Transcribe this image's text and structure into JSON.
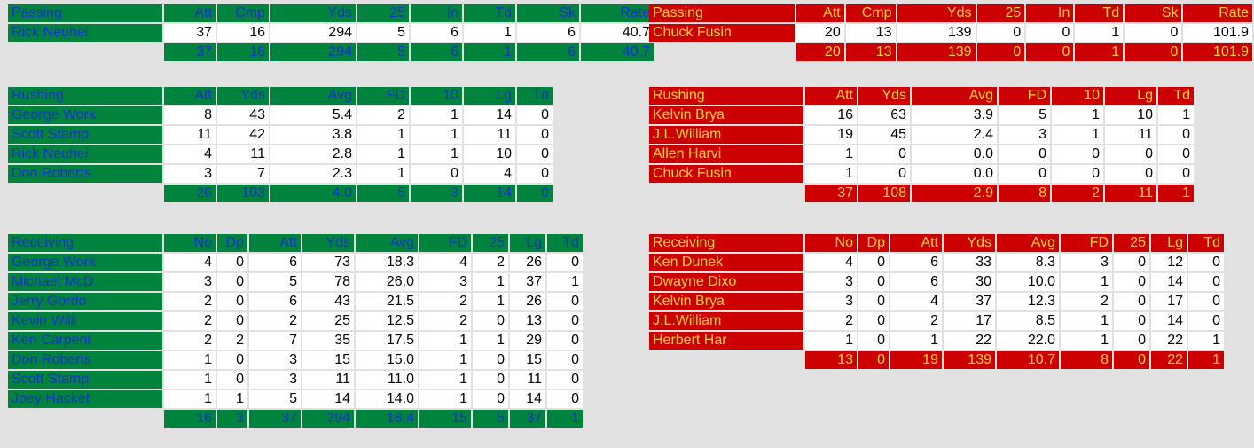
{
  "colors": {
    "home_bg": "#00843d",
    "home_text": "#1a2fd0",
    "away_bg": "#cc0000",
    "away_text": "#ffd23a",
    "cell_bg": "#ffffff",
    "page_bg": "#e1e1e1"
  },
  "home": {
    "passing": {
      "headers": [
        "Passing",
        "Att",
        "Cmp",
        "Yds",
        "25",
        "In",
        "Td",
        "Sk",
        "Rate"
      ],
      "rows": [
        [
          "Rick Neuhei",
          "37",
          "16",
          "294",
          "5",
          "6",
          "1",
          "6",
          "40.7"
        ]
      ],
      "totals": [
        "37",
        "16",
        "294",
        "5",
        "6",
        "1",
        "6",
        "40.7"
      ]
    },
    "rushing": {
      "headers": [
        "Rushing",
        "Att",
        "Yds",
        "Avg",
        "FD",
        "10",
        "Lg",
        "Td"
      ],
      "rows": [
        [
          "George Work",
          "8",
          "43",
          "5.4",
          "2",
          "1",
          "14",
          "0"
        ],
        [
          "Scott Stamp",
          "11",
          "42",
          "3.8",
          "1",
          "1",
          "11",
          "0"
        ],
        [
          "Rick Neuhei",
          "4",
          "11",
          "2.8",
          "1",
          "1",
          "10",
          "0"
        ],
        [
          "Don Roberts",
          "3",
          "7",
          "2.3",
          "1",
          "0",
          "4",
          "0"
        ]
      ],
      "totals": [
        "26",
        "103",
        "4.0",
        "5",
        "3",
        "14",
        "0"
      ]
    },
    "receiving": {
      "headers": [
        "Receiving",
        "No",
        "Dp",
        "Att",
        "Yds",
        "Avg",
        "FD",
        "25",
        "Lg",
        "Td"
      ],
      "rows": [
        [
          "George Work",
          "4",
          "0",
          "6",
          "73",
          "18.3",
          "4",
          "2",
          "26",
          "0"
        ],
        [
          "Michael McD",
          "3",
          "0",
          "5",
          "78",
          "26.0",
          "3",
          "1",
          "37",
          "1"
        ],
        [
          "Jerry Gordo",
          "2",
          "0",
          "6",
          "43",
          "21.5",
          "2",
          "1",
          "26",
          "0"
        ],
        [
          "Kevin Willi",
          "2",
          "0",
          "2",
          "25",
          "12.5",
          "2",
          "0",
          "13",
          "0"
        ],
        [
          "Ken Carpent",
          "2",
          "2",
          "7",
          "35",
          "17.5",
          "1",
          "1",
          "29",
          "0"
        ],
        [
          "Don Roberts",
          "1",
          "0",
          "3",
          "15",
          "15.0",
          "1",
          "0",
          "15",
          "0"
        ],
        [
          "Scott Stamp",
          "1",
          "0",
          "3",
          "11",
          "11.0",
          "1",
          "0",
          "11",
          "0"
        ],
        [
          "Joey Hacket",
          "1",
          "1",
          "5",
          "14",
          "14.0",
          "1",
          "0",
          "14",
          "0"
        ]
      ],
      "totals": [
        "16",
        "3",
        "37",
        "294",
        "18.4",
        "15",
        "5",
        "37",
        "1"
      ]
    }
  },
  "away": {
    "passing": {
      "headers": [
        "Passing",
        "Att",
        "Cmp",
        "Yds",
        "25",
        "In",
        "Td",
        "Sk",
        "Rate"
      ],
      "rows": [
        [
          "Chuck Fusin",
          "20",
          "13",
          "139",
          "0",
          "0",
          "1",
          "0",
          "101.9"
        ]
      ],
      "totals": [
        "20",
        "13",
        "139",
        "0",
        "0",
        "1",
        "0",
        "101.9"
      ]
    },
    "rushing": {
      "headers": [
        "Rushing",
        "Att",
        "Yds",
        "Avg",
        "FD",
        "10",
        "Lg",
        "Td"
      ],
      "rows": [
        [
          "Kelvin Brya",
          "16",
          "63",
          "3.9",
          "5",
          "1",
          "10",
          "1"
        ],
        [
          "J.L.William",
          "19",
          "45",
          "2.4",
          "3",
          "1",
          "11",
          "0"
        ],
        [
          "Allen Harvi",
          "1",
          "0",
          "0.0",
          "0",
          "0",
          "0",
          "0"
        ],
        [
          "Chuck Fusin",
          "1",
          "0",
          "0.0",
          "0",
          "0",
          "0",
          "0"
        ]
      ],
      "totals": [
        "37",
        "108",
        "2.9",
        "8",
        "2",
        "11",
        "1"
      ]
    },
    "receiving": {
      "headers": [
        "Receiving",
        "No",
        "Dp",
        "Att",
        "Yds",
        "Avg",
        "FD",
        "25",
        "Lg",
        "Td"
      ],
      "rows": [
        [
          "Ken Dunek",
          "4",
          "0",
          "6",
          "33",
          "8.3",
          "3",
          "0",
          "12",
          "0"
        ],
        [
          "Dwayne Dixo",
          "3",
          "0",
          "6",
          "30",
          "10.0",
          "1",
          "0",
          "14",
          "0"
        ],
        [
          "Kelvin Brya",
          "3",
          "0",
          "4",
          "37",
          "12.3",
          "2",
          "0",
          "17",
          "0"
        ],
        [
          "J.L.William",
          "2",
          "0",
          "2",
          "17",
          "8.5",
          "1",
          "0",
          "14",
          "0"
        ],
        [
          "Herbert Har",
          "1",
          "0",
          "1",
          "22",
          "22.0",
          "1",
          "0",
          "22",
          "1"
        ]
      ],
      "totals": [
        "13",
        "0",
        "19",
        "139",
        "10.7",
        "8",
        "0",
        "22",
        "1"
      ]
    }
  }
}
